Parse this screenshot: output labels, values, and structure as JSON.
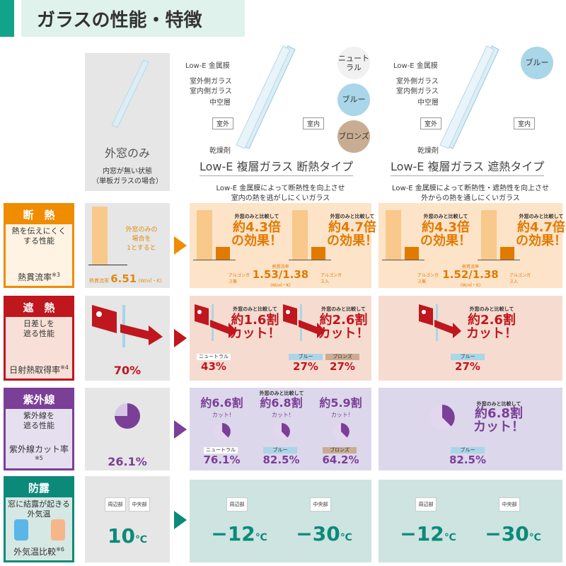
{
  "title": "ガラスの性能・特徴",
  "columns": {
    "outer": {
      "title": "外窓のみ",
      "desc": "内窓が無い状態\n（単板ガラスの場合）"
    },
    "insulation": {
      "title": "Low-E 複層ガラス 断熱タイプ",
      "desc": "Low-E 金属膜によって断熱性を向上させ\n室内の熱を逃がしにくいガラス",
      "colors": [
        "ニュートラル",
        "ブルー",
        "ブロンズ"
      ]
    },
    "shielding": {
      "title": "Low-E 複層ガラス 遮熱タイプ",
      "desc": "Low-E 金属膜によって断熱性・遮熱性を向上させ\n外からの熱を通しにくいガラス",
      "colors": [
        "ブルー"
      ]
    }
  },
  "diagram_labels": [
    "Low-E 金属膜",
    "室外側ガラス",
    "室内側ガラス",
    "中空層",
    "乾燥剤"
  ],
  "outside": "室外",
  "inside": "室内",
  "color_chips": {
    "neutral": "#ffffff",
    "blue": "#a9d6e8",
    "bronze": "#c9ad93"
  },
  "rows": {
    "insulation": {
      "head": "断　熱",
      "text": "熱を伝えにくく\nする性能",
      "foot": "熱貫流率",
      "note": "※3",
      "color": "#ef8c00",
      "outer_note": "外窓のみの\n場合を\n1とすると",
      "outer_label": "熱貫流率",
      "outer_value": "6.51",
      "outer_unit": "(W/㎡・K)",
      "compare": "外窓のみと比較して",
      "col2": [
        "約4.3倍の効果！",
        "約4.7倍の効果！"
      ],
      "col3": [
        "約4.3倍の効果！",
        "約4.7倍の効果！"
      ],
      "uvalue_label": "熱貫流率",
      "argon_no": "アルゴンガス無",
      "argon_yes": "アルゴンガス入",
      "col2_value": "1.53/1.38",
      "col3_value": "1.52/1.38",
      "unit": "(W/㎡・K)"
    },
    "shading": {
      "head": "遮　熱",
      "text": "日差しを\n遮る性能",
      "foot": "日射熱取得率",
      "note": "※4",
      "color": "#c0161e",
      "outer_value": "70%",
      "compare": "外窓のみと比較して",
      "col2": [
        "約1.6割カット！",
        "約2.6割カット！"
      ],
      "col3": [
        "約2.6割カット！"
      ],
      "col2_values": [
        {
          "chip": "ニュートラル",
          "value": "43%"
        },
        {
          "chip": "ブルー",
          "value": "27%"
        },
        {
          "chip": "ブロンズ",
          "value": "27%"
        }
      ],
      "col3_values": [
        {
          "chip": "ブルー",
          "value": "27%"
        }
      ]
    },
    "uv": {
      "head": "紫外線",
      "text": "紫外線を\n遮る性能",
      "foot": "紫外線カット率",
      "note": "※5",
      "color": "#7b3f98",
      "outer_value": "26.1%",
      "compare": "外窓のみと比較して",
      "col2": [
        {
          "cut": "約6.6割",
          "cut2": "カット!",
          "chip": "ニュートラル",
          "value": "76.1%"
        },
        {
          "cut": "約6.8割",
          "cut2": "カット!",
          "chip": "ブルー",
          "value": "82.5%"
        },
        {
          "cut": "約5.9割",
          "cut2": "カット!",
          "chip": "ブロンズ",
          "value": "64.2%"
        }
      ],
      "col3": {
        "cut": "約6.8割カット！",
        "chip": "ブルー",
        "value": "82.5%"
      }
    },
    "condensation": {
      "head": "防露",
      "text": "窓に結露が起きる\n外気温",
      "foot": "外気温比較",
      "note": "※6",
      "color": "#0b8a7a",
      "edge": "周辺部",
      "center": "中央部",
      "outer_value": "10",
      "unit": "℃",
      "col2": [
        "−12",
        "−30"
      ],
      "col3": [
        "−12",
        "−30"
      ]
    }
  }
}
